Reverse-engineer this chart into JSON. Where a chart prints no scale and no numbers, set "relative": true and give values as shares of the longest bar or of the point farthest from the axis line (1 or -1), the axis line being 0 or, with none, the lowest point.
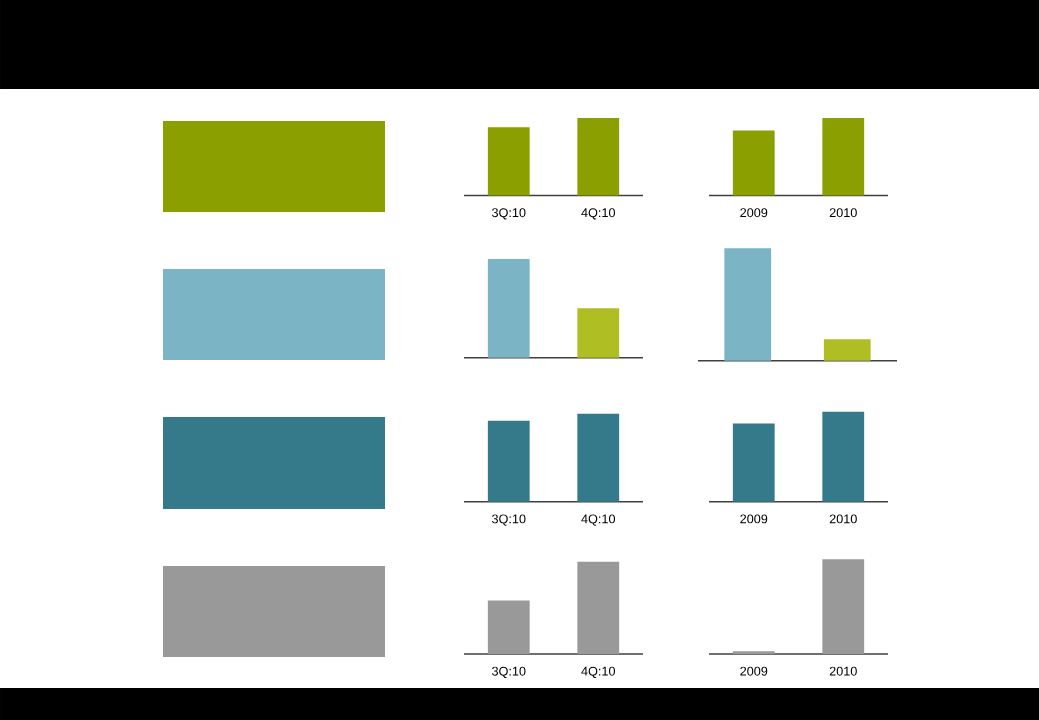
{
  "chart_data": [
    {
      "type": "bar",
      "relative": true,
      "categories": [
        "3Q:10",
        "4Q:10"
      ],
      "values": [
        0.88,
        1
      ],
      "color": "#8c9f00"
    },
    {
      "type": "bar",
      "relative": true,
      "categories": [
        "2009",
        "2010"
      ],
      "values": [
        0.84,
        1
      ],
      "color": "#8c9f00"
    },
    {
      "type": "bar",
      "relative": true,
      "categories": [
        null,
        null
      ],
      "values": [
        1,
        0.5
      ],
      "colors": [
        "#7ab4c5",
        "#afbe22"
      ]
    },
    {
      "type": "bar",
      "relative": true,
      "categories": [
        null,
        null
      ],
      "values": [
        1,
        0.19
      ],
      "colors": [
        "#7ab4c5",
        "#afbe22"
      ]
    },
    {
      "type": "bar",
      "relative": true,
      "categories": [
        "3Q:10",
        "4Q:10"
      ],
      "values": [
        0.92,
        1
      ],
      "color": "#357a8a"
    },
    {
      "type": "bar",
      "relative": true,
      "categories": [
        "2009",
        "2010"
      ],
      "values": [
        0.87,
        1
      ],
      "color": "#357a8a"
    },
    {
      "type": "bar",
      "relative": true,
      "categories": [
        "3Q:10",
        "4Q:10"
      ],
      "values": [
        0.58,
        1
      ],
      "color": "#999999"
    },
    {
      "type": "bar",
      "relative": true,
      "categories": [
        "2009",
        "2010"
      ],
      "values": [
        0.03,
        1
      ],
      "color": "#999999"
    }
  ]
}
